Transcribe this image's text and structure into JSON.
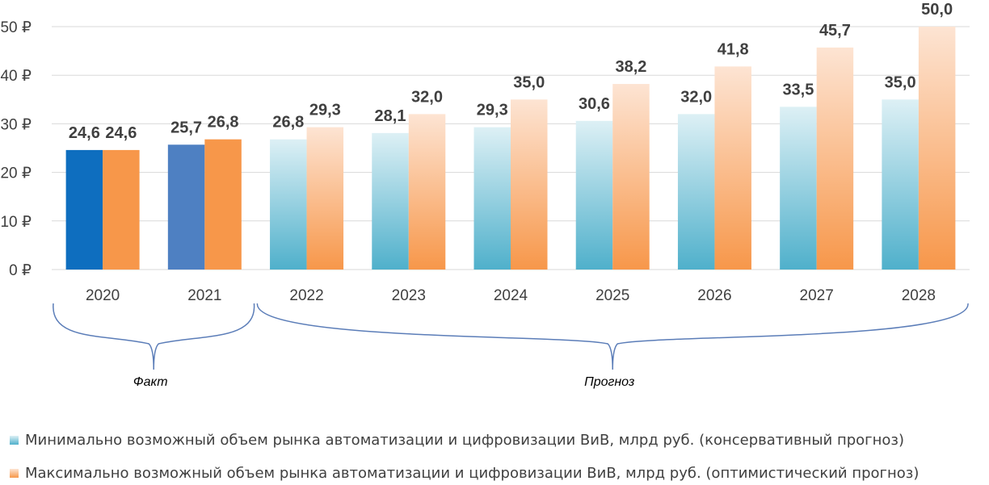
{
  "chart_data": {
    "type": "bar",
    "categories": [
      "2020",
      "2021",
      "2022",
      "2023",
      "2024",
      "2025",
      "2026",
      "2027",
      "2028"
    ],
    "series": [
      {
        "name": "Минимально возможный объем рынка автоматизации и цифровизации ВиВ, млрд руб. (консервативный прогноз)",
        "values": [
          24.6,
          25.7,
          26.8,
          28.1,
          29.3,
          30.6,
          32.0,
          33.5,
          35.0
        ],
        "labels": [
          "24,6",
          "25,7",
          "26,8",
          "28,1",
          "29,3",
          "30,6",
          "32,0",
          "33,5",
          "35,0"
        ]
      },
      {
        "name": "Максимально возможный объем рынка автоматизации и цифровизации ВиВ, млрд руб. (оптимистический прогноз)",
        "values": [
          24.6,
          26.8,
          29.3,
          32.0,
          35.0,
          38.2,
          41.8,
          45.7,
          50.0
        ],
        "labels": [
          "24,6",
          "26,8",
          "29,3",
          "32,0",
          "35,0",
          "38,2",
          "41,8",
          "45,7",
          "50,0"
        ]
      }
    ],
    "ylim": [
      0,
      50
    ],
    "yticks": [
      0,
      10,
      20,
      30,
      40,
      50
    ],
    "ytick_labels": [
      "0 ₽",
      "10 ₽",
      "20 ₽",
      "30 ₽",
      "40 ₽",
      "50 ₽"
    ],
    "grid": "horizontal",
    "legend": "bottom",
    "fact_bar_colors": [
      "#0E6EBF",
      "#4E80C2"
    ],
    "fact_orange": "#F7974A",
    "forecast_blue_gradient": [
      "#DDF0F5",
      "#4FB0CB"
    ],
    "forecast_orange_gradient": [
      "#FDE4D3",
      "#F7974A"
    ],
    "brackets": [
      {
        "label": "Факт",
        "from_category": 0,
        "to_category": 1
      },
      {
        "label": "Прогноз",
        "from_category": 2,
        "to_category": 8
      }
    ],
    "bracket_color": "#5B7DB8"
  }
}
